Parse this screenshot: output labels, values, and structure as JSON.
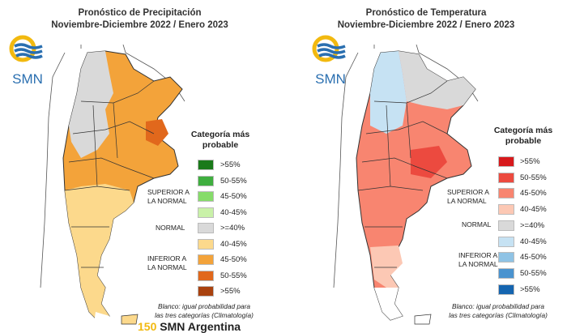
{
  "precip": {
    "title_line1": "Pronóstico de Precipitación",
    "title_line2": "Noviembre-Diciembre 2022 / Enero 2023",
    "logo_text": "SMN",
    "legend_title_1": "Categoría más",
    "legend_title_2": "probable",
    "groups": {
      "superior_1": "SUPERIOR A",
      "superior_2": "LA NORMAL",
      "normal": "NORMAL",
      "inferior_1": "INFERIOR A",
      "inferior_2": "LA NORMAL"
    },
    "items": [
      {
        "label": ">55%",
        "color": "#1a7a1a"
      },
      {
        "label": "50-55%",
        "color": "#3fae3f"
      },
      {
        "label": "45-50%",
        "color": "#86dc6a"
      },
      {
        "label": "40-45%",
        "color": "#c9f1a8"
      },
      {
        "label": ">=40%",
        "color": "#d9d9d9"
      },
      {
        "label": "40-45%",
        "color": "#fcd98c"
      },
      {
        "label": "45-50%",
        "color": "#f3a33a"
      },
      {
        "label": "50-55%",
        "color": "#e1681c"
      },
      {
        "label": ">55%",
        "color": "#a9420f"
      }
    ],
    "note_1": "Blanco: igual probabilidad para",
    "note_2": "las tres categorías (Climatología)",
    "footer": "SMN Argentina"
  },
  "temp": {
    "title_line1": "Pronóstico de Temperatura",
    "title_line2": "Noviembre-Diciembre 2022 / Enero 2023",
    "logo_text": "SMN",
    "legend_title_1": "Categoría más",
    "legend_title_2": "probable",
    "groups": {
      "superior_1": "SUPERIOR A",
      "superior_2": "LA NORMAL",
      "normal": "NORMAL",
      "inferior_1": "INFERIOR A",
      "inferior_2": "LA NORMAL"
    },
    "items": [
      {
        "label": ">55%",
        "color": "#d7191c"
      },
      {
        "label": "50-55%",
        "color": "#ec4a3f"
      },
      {
        "label": "45-50%",
        "color": "#f88570"
      },
      {
        "label": "40-45%",
        "color": "#fcc8b4"
      },
      {
        "label": ">=40%",
        "color": "#d9d9d9"
      },
      {
        "label": "40-45%",
        "color": "#c6e2f3"
      },
      {
        "label": "45-50%",
        "color": "#8fc3e5"
      },
      {
        "label": "50-55%",
        "color": "#4a93cf"
      },
      {
        "label": ">55%",
        "color": "#1565b0"
      }
    ],
    "note_1": "Blanco: igual probabilidad para",
    "note_2": "las tres categorías (Climatología)"
  },
  "colors": {
    "coast": "#333333",
    "sea": "#ffffff",
    "logo_blue": "#2a6fb0",
    "logo_yellow": "#f2b90f"
  }
}
